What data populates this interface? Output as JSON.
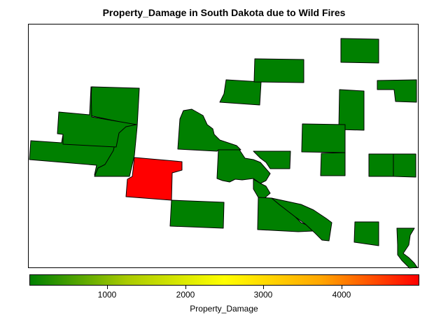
{
  "title": "Property_Damage in South Dakota due to Wild Fires",
  "legend": {
    "label": "Property_Damage",
    "ticks": [
      "1000",
      "2000",
      "3000",
      "4000"
    ],
    "tick_values": [
      1000,
      2000,
      3000,
      4000
    ],
    "min": 0,
    "max": 5000,
    "colors": [
      "#008000",
      "#ffff00",
      "#ff0000"
    ]
  },
  "counties": [
    {
      "id": "county-1",
      "fill": "#008000"
    },
    {
      "id": "county-2",
      "fill": "#008000"
    },
    {
      "id": "county-3",
      "fill": "#008000"
    },
    {
      "id": "county-4",
      "fill": "#ff0000"
    },
    {
      "id": "county-5",
      "fill": "#008000"
    },
    {
      "id": "county-6",
      "fill": "#008000"
    },
    {
      "id": "county-7",
      "fill": "#008000"
    },
    {
      "id": "county-8",
      "fill": "#008000"
    },
    {
      "id": "county-9",
      "fill": "#008000"
    },
    {
      "id": "county-10",
      "fill": "#008000"
    },
    {
      "id": "county-11",
      "fill": "#008000"
    },
    {
      "id": "county-12",
      "fill": "#008000"
    },
    {
      "id": "county-13",
      "fill": "#008000"
    },
    {
      "id": "county-14",
      "fill": "#008000"
    },
    {
      "id": "county-15",
      "fill": "#008000"
    },
    {
      "id": "county-16",
      "fill": "#008000"
    },
    {
      "id": "county-17",
      "fill": "#008000"
    },
    {
      "id": "county-18",
      "fill": "#008000"
    },
    {
      "id": "county-19",
      "fill": "#008000"
    },
    {
      "id": "county-20",
      "fill": "#008000"
    },
    {
      "id": "county-21",
      "fill": "#008000"
    },
    {
      "id": "county-22",
      "fill": "#008000"
    },
    {
      "id": "county-23",
      "fill": "#008000"
    }
  ]
}
